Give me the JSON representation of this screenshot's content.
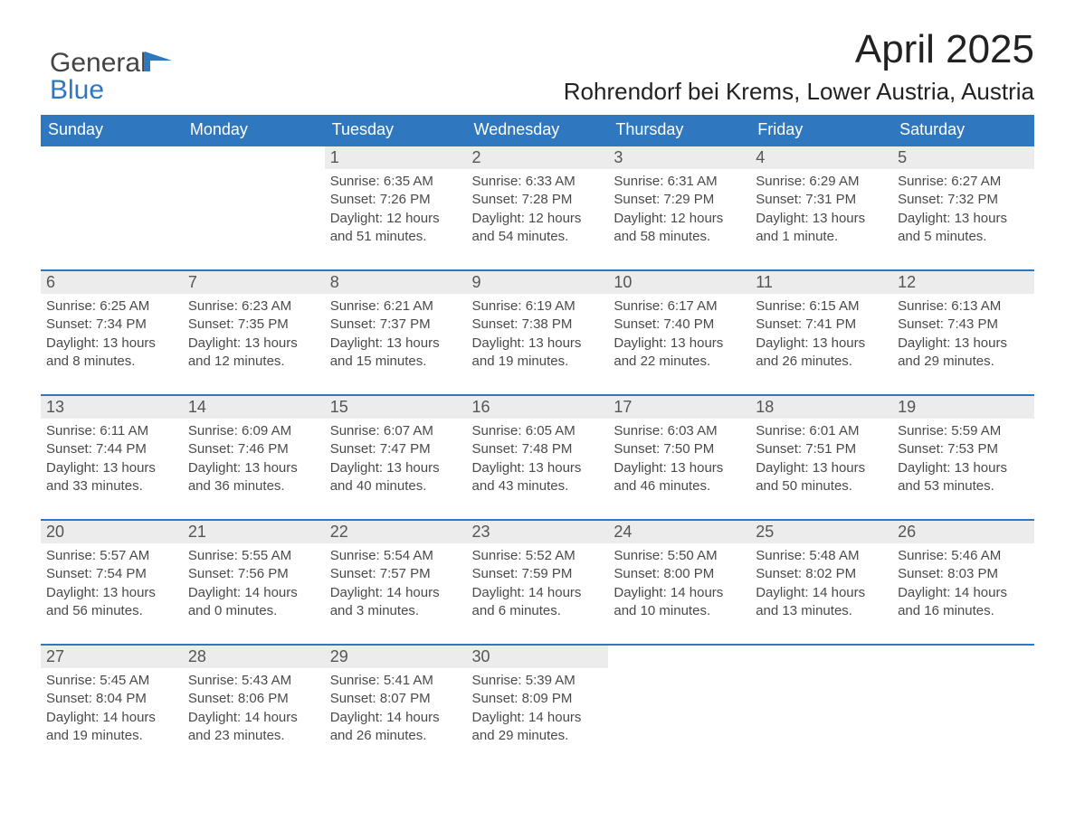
{
  "logo": {
    "word1": "General",
    "word2": "Blue"
  },
  "title": "April 2025",
  "location": "Rohrendorf bei Krems, Lower Austria, Austria",
  "colors": {
    "header_bg": "#2f78c0",
    "header_text": "#ffffff",
    "daynum_bg": "#ececec",
    "daynum_text": "#555555",
    "body_text": "#4a4a4a",
    "row_border": "#2f78c0",
    "page_bg": "#ffffff",
    "logo_general": "#444444",
    "logo_blue": "#2f78c0"
  },
  "typography": {
    "month_title_fontsize": 44,
    "location_fontsize": 26,
    "header_fontsize": 18,
    "daynum_fontsize": 18,
    "cell_fontsize": 15,
    "logo_fontsize": 30
  },
  "columns": [
    "Sunday",
    "Monday",
    "Tuesday",
    "Wednesday",
    "Thursday",
    "Friday",
    "Saturday"
  ],
  "weeks": [
    [
      null,
      null,
      {
        "n": "1",
        "sunrise": "6:35 AM",
        "sunset": "7:26 PM",
        "daylight": "12 hours and 51 minutes."
      },
      {
        "n": "2",
        "sunrise": "6:33 AM",
        "sunset": "7:28 PM",
        "daylight": "12 hours and 54 minutes."
      },
      {
        "n": "3",
        "sunrise": "6:31 AM",
        "sunset": "7:29 PM",
        "daylight": "12 hours and 58 minutes."
      },
      {
        "n": "4",
        "sunrise": "6:29 AM",
        "sunset": "7:31 PM",
        "daylight": "13 hours and 1 minute."
      },
      {
        "n": "5",
        "sunrise": "6:27 AM",
        "sunset": "7:32 PM",
        "daylight": "13 hours and 5 minutes."
      }
    ],
    [
      {
        "n": "6",
        "sunrise": "6:25 AM",
        "sunset": "7:34 PM",
        "daylight": "13 hours and 8 minutes."
      },
      {
        "n": "7",
        "sunrise": "6:23 AM",
        "sunset": "7:35 PM",
        "daylight": "13 hours and 12 minutes."
      },
      {
        "n": "8",
        "sunrise": "6:21 AM",
        "sunset": "7:37 PM",
        "daylight": "13 hours and 15 minutes."
      },
      {
        "n": "9",
        "sunrise": "6:19 AM",
        "sunset": "7:38 PM",
        "daylight": "13 hours and 19 minutes."
      },
      {
        "n": "10",
        "sunrise": "6:17 AM",
        "sunset": "7:40 PM",
        "daylight": "13 hours and 22 minutes."
      },
      {
        "n": "11",
        "sunrise": "6:15 AM",
        "sunset": "7:41 PM",
        "daylight": "13 hours and 26 minutes."
      },
      {
        "n": "12",
        "sunrise": "6:13 AM",
        "sunset": "7:43 PM",
        "daylight": "13 hours and 29 minutes."
      }
    ],
    [
      {
        "n": "13",
        "sunrise": "6:11 AM",
        "sunset": "7:44 PM",
        "daylight": "13 hours and 33 minutes."
      },
      {
        "n": "14",
        "sunrise": "6:09 AM",
        "sunset": "7:46 PM",
        "daylight": "13 hours and 36 minutes."
      },
      {
        "n": "15",
        "sunrise": "6:07 AM",
        "sunset": "7:47 PM",
        "daylight": "13 hours and 40 minutes."
      },
      {
        "n": "16",
        "sunrise": "6:05 AM",
        "sunset": "7:48 PM",
        "daylight": "13 hours and 43 minutes."
      },
      {
        "n": "17",
        "sunrise": "6:03 AM",
        "sunset": "7:50 PM",
        "daylight": "13 hours and 46 minutes."
      },
      {
        "n": "18",
        "sunrise": "6:01 AM",
        "sunset": "7:51 PM",
        "daylight": "13 hours and 50 minutes."
      },
      {
        "n": "19",
        "sunrise": "5:59 AM",
        "sunset": "7:53 PM",
        "daylight": "13 hours and 53 minutes."
      }
    ],
    [
      {
        "n": "20",
        "sunrise": "5:57 AM",
        "sunset": "7:54 PM",
        "daylight": "13 hours and 56 minutes."
      },
      {
        "n": "21",
        "sunrise": "5:55 AM",
        "sunset": "7:56 PM",
        "daylight": "14 hours and 0 minutes."
      },
      {
        "n": "22",
        "sunrise": "5:54 AM",
        "sunset": "7:57 PM",
        "daylight": "14 hours and 3 minutes."
      },
      {
        "n": "23",
        "sunrise": "5:52 AM",
        "sunset": "7:59 PM",
        "daylight": "14 hours and 6 minutes."
      },
      {
        "n": "24",
        "sunrise": "5:50 AM",
        "sunset": "8:00 PM",
        "daylight": "14 hours and 10 minutes."
      },
      {
        "n": "25",
        "sunrise": "5:48 AM",
        "sunset": "8:02 PM",
        "daylight": "14 hours and 13 minutes."
      },
      {
        "n": "26",
        "sunrise": "5:46 AM",
        "sunset": "8:03 PM",
        "daylight": "14 hours and 16 minutes."
      }
    ],
    [
      {
        "n": "27",
        "sunrise": "5:45 AM",
        "sunset": "8:04 PM",
        "daylight": "14 hours and 19 minutes."
      },
      {
        "n": "28",
        "sunrise": "5:43 AM",
        "sunset": "8:06 PM",
        "daylight": "14 hours and 23 minutes."
      },
      {
        "n": "29",
        "sunrise": "5:41 AM",
        "sunset": "8:07 PM",
        "daylight": "14 hours and 26 minutes."
      },
      {
        "n": "30",
        "sunrise": "5:39 AM",
        "sunset": "8:09 PM",
        "daylight": "14 hours and 29 minutes."
      },
      null,
      null,
      null
    ]
  ],
  "labels": {
    "sunrise": "Sunrise: ",
    "sunset": "Sunset: ",
    "daylight": "Daylight: "
  }
}
